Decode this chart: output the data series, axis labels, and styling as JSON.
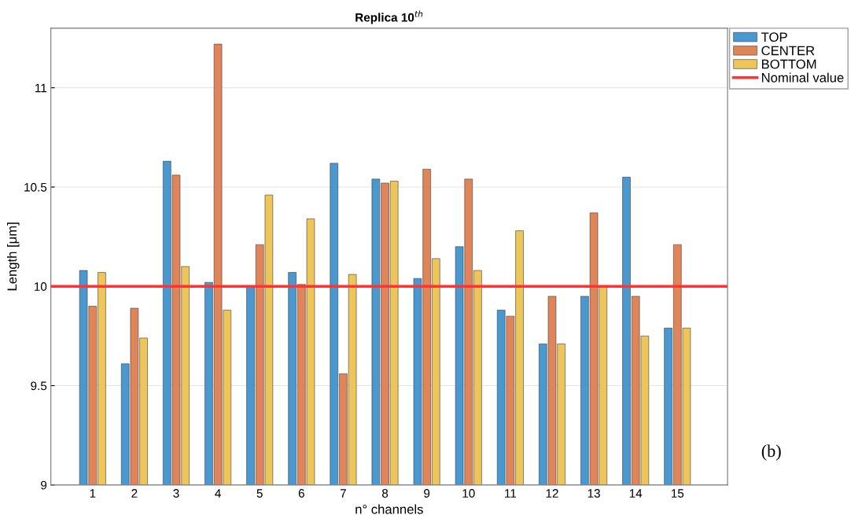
{
  "chart_data": {
    "type": "bar",
    "title": "Replica 10$^{th}$",
    "xlabel": "n° channels",
    "ylabel": "Length [μm]",
    "categories": [
      "1",
      "2",
      "3",
      "4",
      "5",
      "6",
      "7",
      "8",
      "9",
      "10",
      "11",
      "12",
      "13",
      "14",
      "15"
    ],
    "series": [
      {
        "name": "TOP",
        "color": "#4a98d0",
        "values": [
          10.08,
          9.61,
          10.63,
          10.02,
          10.0,
          10.07,
          10.62,
          10.54,
          10.04,
          10.2,
          9.88,
          9.71,
          9.95,
          10.55,
          9.79
        ]
      },
      {
        "name": "CENTER",
        "color": "#e0855a",
        "values": [
          9.9,
          9.89,
          10.56,
          11.22,
          10.21,
          10.01,
          9.56,
          10.52,
          10.59,
          10.54,
          9.85,
          9.95,
          10.37,
          9.95,
          10.21
        ]
      },
      {
        "name": "BOTTOM",
        "color": "#eec55a",
        "values": [
          10.07,
          9.74,
          10.1,
          9.88,
          10.46,
          10.34,
          10.06,
          10.53,
          10.14,
          10.08,
          10.28,
          9.71,
          10.0,
          9.75,
          9.79
        ]
      }
    ],
    "ylim": [
      9,
      11.3
    ],
    "yticks": [
      9,
      9.5,
      10,
      10.5,
      11
    ],
    "ref_lines": [
      {
        "axis": "y",
        "value": 10,
        "label": "Nominal value",
        "color": "#ff3333"
      }
    ],
    "annotations": [
      "(b)"
    ],
    "grid": "y",
    "legend": "top right"
  }
}
